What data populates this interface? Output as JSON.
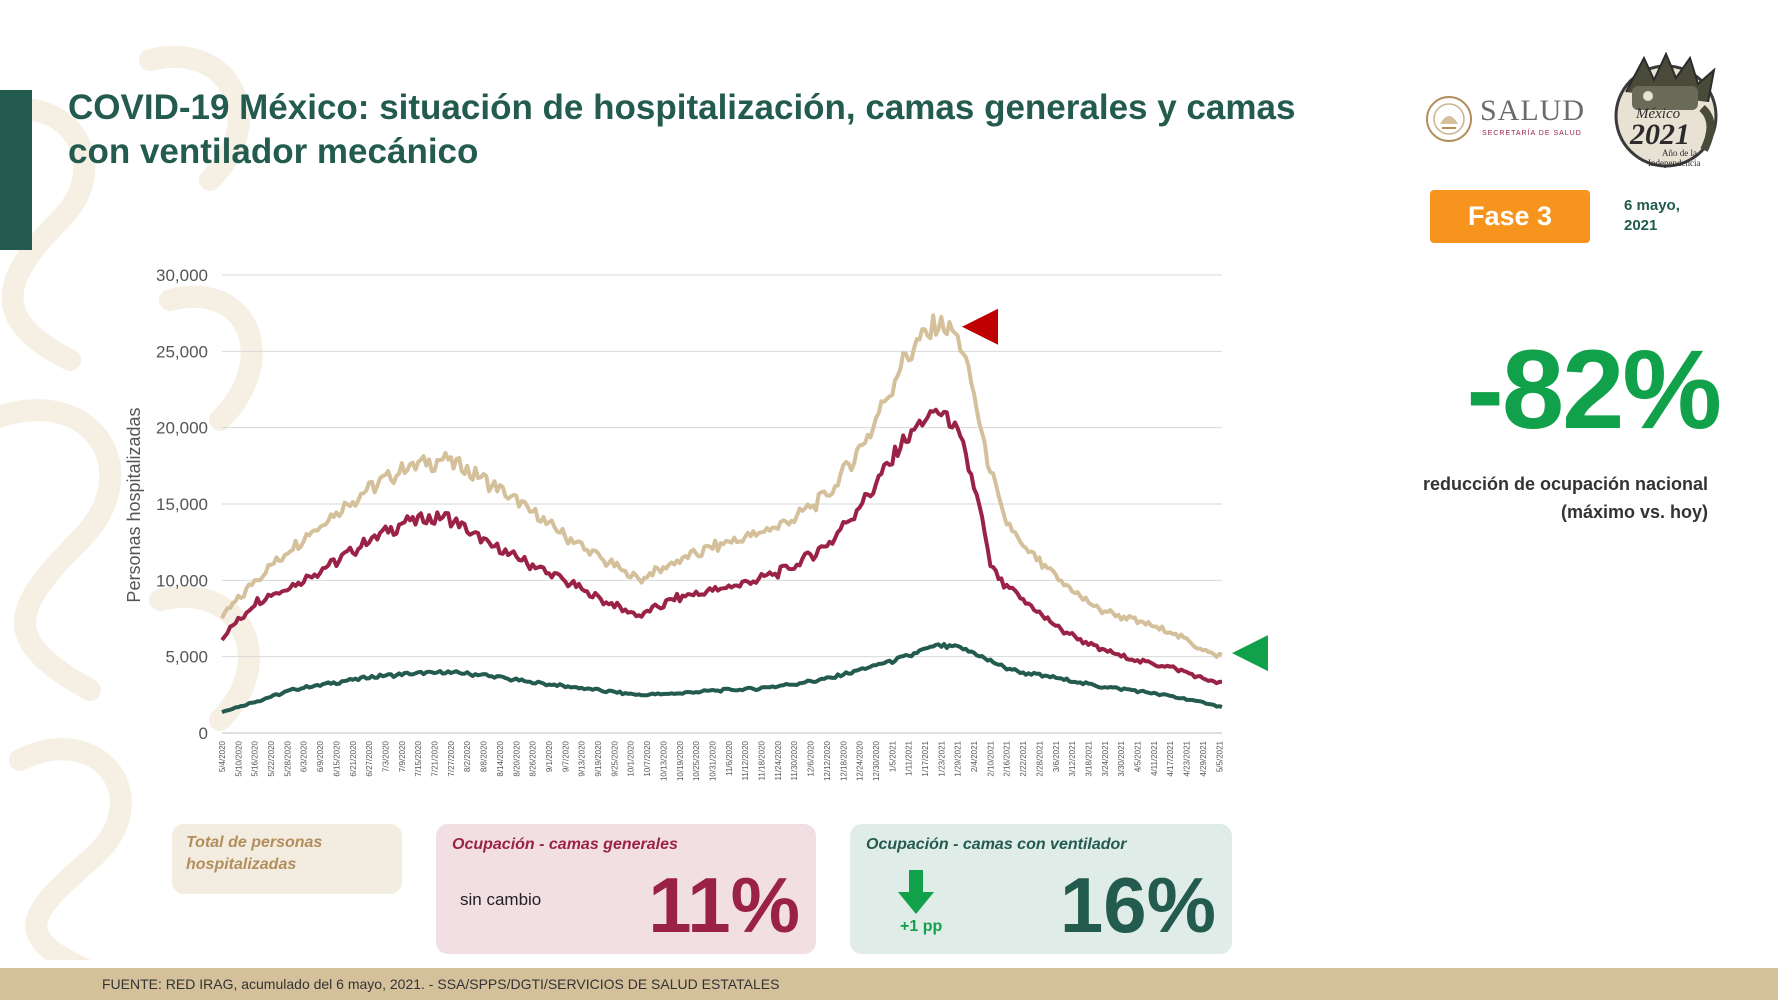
{
  "title": "COVID-19 México: situación de hospitalización, camas generales y camas con ventilador mecánico",
  "logos": {
    "salud_word": "SALUD",
    "salud_sub": "SECRETARÍA DE SALUD",
    "mexico_word": "México",
    "mexico_year": "2021",
    "mexico_line1": "Año de la",
    "mexico_line2": "Independencia"
  },
  "phase_badge": "Fase 3",
  "date": {
    "line1": "6 mayo,",
    "line2": "2021"
  },
  "summary": {
    "value": "-82%",
    "line1": "reducción de ocupación nacional",
    "line2": "(máximo vs. hoy)"
  },
  "cards": {
    "total": {
      "title": "Total de personas hospitalizadas"
    },
    "general": {
      "title": "Ocupación - camas generales",
      "note": "sin cambio",
      "value": "11%"
    },
    "ventilator": {
      "title": "Ocupación - camas con ventilador",
      "change": "+1 pp",
      "value": "16%"
    }
  },
  "footer": "FUENTE: RED IRAG, acumulado del 6 mayo, 2021. -  SSA/SPPS/DGTI/SERVICIOS DE SALUD ESTATALES",
  "colors": {
    "total": "#d4c19c",
    "general": "#9b2247",
    "ventilator": "#235b4e",
    "max_marker": "#c00000",
    "current_marker": "#12a14b"
  },
  "chart_data": {
    "type": "line",
    "ylabel": "Personas hospitalizadas",
    "ylim": [
      0,
      30000
    ],
    "yticks": [
      "0",
      "5,000",
      "10,000",
      "15,000",
      "20,000",
      "25,000",
      "30,000"
    ],
    "ytick_values": [
      0,
      5000,
      10000,
      15000,
      20000,
      25000,
      30000
    ],
    "grid": true,
    "x_tick_labels": [
      "5/4/2020",
      "5/10/2020",
      "5/16/2020",
      "5/22/2020",
      "5/28/2020",
      "6/3/2020",
      "6/9/2020",
      "6/15/2020",
      "6/21/2020",
      "6/27/2020",
      "7/3/2020",
      "7/9/2020",
      "7/15/2020",
      "7/21/2020",
      "7/27/2020",
      "8/2/2020",
      "8/8/2020",
      "8/14/2020",
      "8/20/2020",
      "8/26/2020",
      "9/1/2020",
      "9/7/2020",
      "9/13/2020",
      "9/19/2020",
      "9/25/2020",
      "10/1/2020",
      "10/7/2020",
      "10/13/2020",
      "10/19/2020",
      "10/25/2020",
      "10/31/2020",
      "11/6/2020",
      "11/12/2020",
      "11/18/2020",
      "11/24/2020",
      "11/30/2020",
      "12/6/2020",
      "12/12/2020",
      "12/18/2020",
      "12/24/2020",
      "12/30/2020",
      "1/5/2021",
      "1/11/2021",
      "1/17/2021",
      "1/23/2021",
      "1/29/2021",
      "2/4/2021",
      "2/10/2021",
      "2/16/2021",
      "2/22/2021",
      "2/28/2021",
      "3/6/2021",
      "3/12/2021",
      "3/18/2021",
      "3/24/2021",
      "3/30/2021",
      "4/5/2021",
      "4/11/2021",
      "4/17/2021",
      "4/23/2021",
      "4/29/2021",
      "5/5/2021"
    ],
    "x_start": "2020-05-04",
    "x_end": "2021-05-06",
    "series": [
      {
        "key": "total",
        "x": [
          "2020-05-04",
          "2020-05-17",
          "2020-05-31",
          "2020-06-14",
          "2020-06-28",
          "2020-07-12",
          "2020-07-26",
          "2020-08-09",
          "2020-08-23",
          "2020-09-06",
          "2020-09-20",
          "2020-10-04",
          "2020-10-18",
          "2020-11-01",
          "2020-11-15",
          "2020-11-29",
          "2020-12-13",
          "2020-12-27",
          "2021-01-10",
          "2021-01-20",
          "2021-01-26",
          "2021-02-01",
          "2021-02-07",
          "2021-02-14",
          "2021-02-21",
          "2021-03-07",
          "2021-03-21",
          "2021-04-04",
          "2021-04-18",
          "2021-05-02",
          "2021-05-06"
        ],
        "values": [
          7600,
          10200,
          12400,
          14400,
          16200,
          17600,
          18000,
          16600,
          14900,
          13100,
          11500,
          10100,
          11300,
          12300,
          13000,
          14000,
          15800,
          19500,
          24800,
          26700,
          26800,
          24700,
          19500,
          14600,
          12400,
          10100,
          8200,
          7400,
          6600,
          5200,
          5100
        ]
      },
      {
        "key": "general",
        "x": [
          "2020-05-04",
          "2020-05-17",
          "2020-05-31",
          "2020-06-14",
          "2020-06-28",
          "2020-07-12",
          "2020-07-26",
          "2020-08-09",
          "2020-08-23",
          "2020-09-06",
          "2020-09-20",
          "2020-10-04",
          "2020-10-18",
          "2020-11-01",
          "2020-11-15",
          "2020-11-29",
          "2020-12-13",
          "2020-12-27",
          "2021-01-10",
          "2021-01-20",
          "2021-01-26",
          "2021-02-01",
          "2021-02-07",
          "2021-02-10",
          "2021-02-14",
          "2021-02-21",
          "2021-03-07",
          "2021-03-21",
          "2021-04-04",
          "2021-04-18",
          "2021-05-02",
          "2021-05-06"
        ],
        "values": [
          6300,
          8700,
          9800,
          11200,
          12800,
          14000,
          14200,
          12500,
          11300,
          10100,
          8800,
          7700,
          8900,
          9400,
          10000,
          10900,
          12500,
          15600,
          19400,
          21100,
          20800,
          18300,
          14000,
          11000,
          9900,
          8900,
          6900,
          5600,
          4800,
          4300,
          3400,
          3300
        ]
      },
      {
        "key": "ventilator",
        "x": [
          "2020-05-04",
          "2020-05-17",
          "2020-05-31",
          "2020-06-14",
          "2020-06-28",
          "2020-07-12",
          "2020-07-26",
          "2020-08-09",
          "2020-08-23",
          "2020-09-06",
          "2020-09-20",
          "2020-10-04",
          "2020-10-18",
          "2020-11-01",
          "2020-11-15",
          "2020-11-29",
          "2020-12-13",
          "2020-12-27",
          "2021-01-10",
          "2021-01-20",
          "2021-01-26",
          "2021-02-01",
          "2021-02-07",
          "2021-02-14",
          "2021-02-21",
          "2021-03-07",
          "2021-03-21",
          "2021-04-04",
          "2021-04-18",
          "2021-05-02",
          "2021-05-06"
        ],
        "values": [
          1400,
          2100,
          2900,
          3300,
          3700,
          3900,
          4000,
          3800,
          3400,
          3100,
          2800,
          2500,
          2600,
          2800,
          2900,
          3200,
          3600,
          4300,
          5000,
          5700,
          5700,
          5500,
          5000,
          4400,
          4000,
          3600,
          3100,
          2800,
          2400,
          1900,
          1700
        ]
      }
    ],
    "markers": [
      {
        "type": "max",
        "direction": "left",
        "value": 27000
      },
      {
        "type": "current",
        "direction": "left",
        "value": 5100
      }
    ]
  }
}
